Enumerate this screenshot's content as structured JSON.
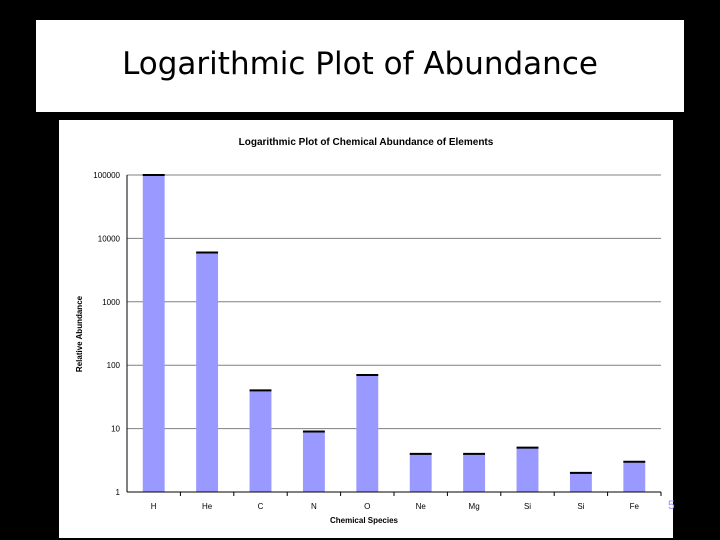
{
  "slide": {
    "title": "Logarithmic Plot of Abundance",
    "page_number": "5"
  },
  "colors": {
    "background": "#000000",
    "bar_fill": "#9999ff",
    "bar_outline": "#000000",
    "gridline": "#808080"
  },
  "chart_data": {
    "type": "bar",
    "title": "Logarithmic Plot of Chemical Abundance of Elements",
    "xlabel": "Chemical Species",
    "ylabel": "Relative Abundance",
    "y_scale": "log",
    "ylim": [
      1,
      100000
    ],
    "yticks": [
      "1",
      "10",
      "100",
      "1000",
      "10000",
      "100000"
    ],
    "grid": true,
    "legend": "none",
    "categories": [
      "H",
      "He",
      "C",
      "N",
      "O",
      "Ne",
      "Mg",
      "Si",
      "Si",
      "Fe"
    ],
    "values": [
      100000,
      6000,
      40,
      9,
      70,
      4,
      4,
      5,
      2,
      3
    ]
  }
}
